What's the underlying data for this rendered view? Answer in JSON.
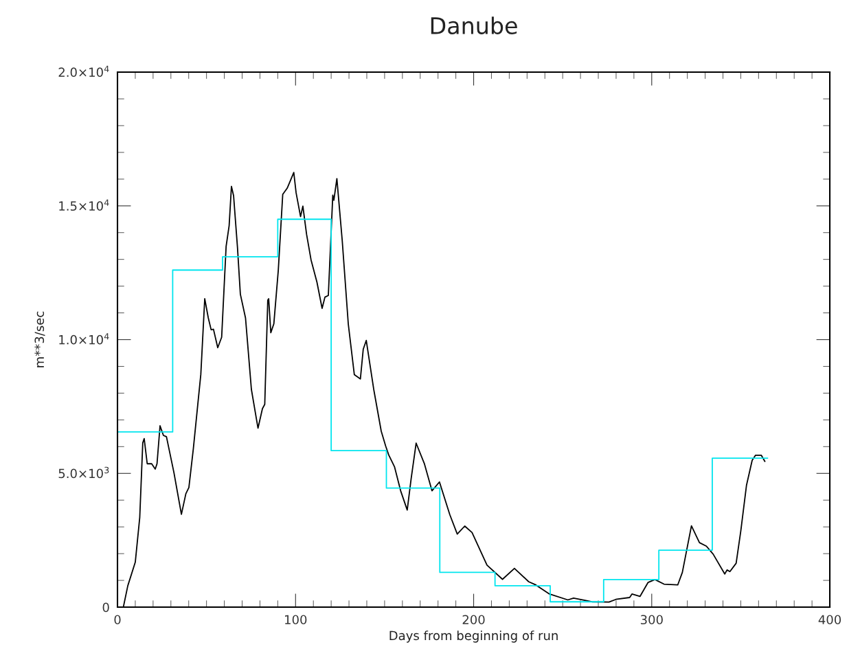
{
  "chart_data": {
    "type": "line",
    "title": "Danube",
    "xlabel": "Days from beginning of run",
    "ylabel": "m**3/sec",
    "xlim": [
      0,
      400
    ],
    "xticks": [
      0,
      100,
      200,
      300,
      400
    ],
    "ylim": [
      0,
      20000
    ],
    "yticks": [
      0,
      {
        "value": 5000,
        "label": "5.0×10$^{3}$"
      },
      {
        "value": 10000,
        "label": "1.0×10$^{4}$"
      },
      {
        "value": 15000,
        "label": "1.5×10$^{4}$"
      },
      {
        "value": 20000,
        "label": "2.0×10$^{4}$"
      }
    ],
    "grid": false,
    "marker": "none",
    "line_style": "solid",
    "series": [
      {
        "color": "#000000",
        "x": [
          3.3,
          5.8,
          10,
          12.5,
          14.2,
          15,
          16.7,
          19.2,
          21.2,
          22.2,
          23.9,
          25.8,
          27.5,
          31.7,
          35.9,
          38.4,
          40.1,
          42.6,
          45.1,
          46.8,
          49,
          51,
          52.6,
          53.9,
          56.3,
          58.5,
          61,
          62.7,
          64,
          65.2,
          67.4,
          69,
          71.9,
          75.2,
          78.9,
          81.4,
          82.7,
          84.4,
          84.9,
          86.1,
          87.8,
          90.3,
          92.8,
          95.3,
          97,
          99,
          100.3,
          102.8,
          104.1,
          106.2,
          108.7,
          112,
          114.9,
          116.5,
          118.4,
          120.9,
          121.5,
          123.2,
          126.2,
          129.6,
          133,
          136.4,
          138,
          139.7,
          143.9,
          148.1,
          150.6,
          152.3,
          155.6,
          159,
          162.7,
          164.9,
          167.7,
          172.4,
          176.6,
          180.8,
          186.6,
          190.8,
          195,
          199.1,
          207.5,
          216.2,
          222.9,
          230.9,
          234.9,
          242.6,
          252.9,
          256.1,
          266.4,
          276,
          279.9,
          287.6,
          288.9,
          293.4,
          297.9,
          301.8,
          306.9,
          314.6,
          317.2,
          322.3,
          326.8,
          330.7,
          334.5,
          341,
          342.3,
          343.9,
          347.4,
          350,
          353.2,
          356.4,
          358.3,
          361.5,
          363.5
        ],
        "values": [
          0,
          800,
          1680,
          3350,
          6140,
          6300,
          5360,
          5360,
          5160,
          5360,
          6780,
          6420,
          6370,
          5030,
          3470,
          4240,
          4470,
          5920,
          7580,
          8700,
          11530,
          10810,
          10370,
          10390,
          9700,
          10090,
          13480,
          14260,
          15730,
          15380,
          13430,
          11700,
          10810,
          8140,
          6690,
          7420,
          7580,
          11480,
          11530,
          10260,
          10590,
          12590,
          15430,
          15660,
          15930,
          16250,
          15490,
          14600,
          14990,
          13930,
          12980,
          12150,
          11170,
          11590,
          11650,
          15400,
          15210,
          16020,
          13710,
          10590,
          8690,
          8530,
          9640,
          9970,
          8140,
          6580,
          6020,
          5690,
          5240,
          4350,
          3630,
          4800,
          6130,
          5350,
          4350,
          4680,
          3460,
          2730,
          3030,
          2790,
          1570,
          1040,
          1450,
          950,
          830,
          490,
          270,
          340,
          200,
          190,
          290,
          360,
          490,
          400,
          920,
          1030,
          860,
          830,
          1300,
          3040,
          2410,
          2280,
          1980,
          1240,
          1390,
          1330,
          1640,
          2840,
          4550,
          5490,
          5680,
          5680,
          5450
        ]
      },
      {
        "type": "step",
        "color": "#00e5ee",
        "x": [
          0,
          31,
          59,
          90,
          120,
          151,
          181,
          212,
          243,
          273,
          304,
          334,
          365
        ],
        "values": [
          6550,
          12600,
          13100,
          14500,
          5850,
          4450,
          1300,
          800,
          200,
          1030,
          2130,
          5570,
          5570
        ]
      }
    ]
  }
}
